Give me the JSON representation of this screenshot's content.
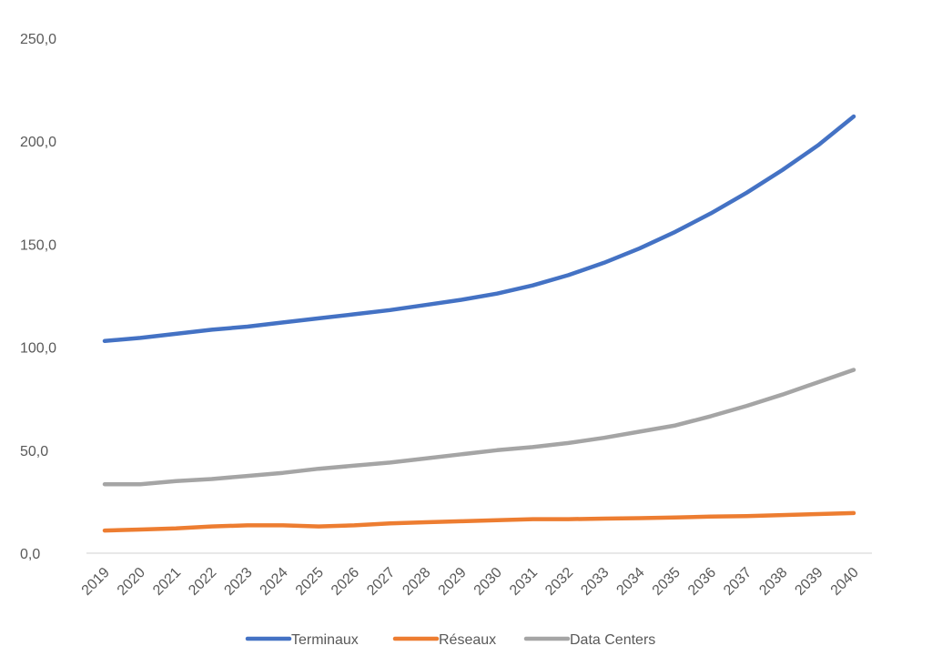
{
  "chart_data": {
    "type": "line",
    "title": "",
    "xlabel": "",
    "ylabel": "",
    "ylim": [
      0,
      250
    ],
    "y_ticks": [
      "0,0",
      "50,0",
      "100,0",
      "150,0",
      "200,0",
      "250,0"
    ],
    "y_tick_values": [
      0,
      50,
      100,
      150,
      200,
      250
    ],
    "grid": false,
    "legend_position": "bottom",
    "categories": [
      "2019",
      "2020",
      "2021",
      "2022",
      "2023",
      "2024",
      "2025",
      "2026",
      "2027",
      "2028",
      "2029",
      "2030",
      "2031",
      "2032",
      "2033",
      "2034",
      "2035",
      "2036",
      "2037",
      "2038",
      "2039",
      "2040"
    ],
    "series": [
      {
        "name": "Terminaux",
        "color": "#4472c4",
        "values": [
          103,
          104.5,
          106.5,
          108.5,
          110,
          112,
          114,
          116,
          118,
          120.5,
          123,
          126,
          130,
          135,
          141,
          148,
          156,
          165,
          175,
          186,
          198,
          212
        ]
      },
      {
        "name": "Réseaux",
        "color": "#ed7d31",
        "values": [
          11,
          11.5,
          12,
          13,
          13.5,
          13.5,
          13,
          13.5,
          14.5,
          15,
          15.5,
          16,
          16.5,
          16.5,
          16.8,
          17,
          17.3,
          17.8,
          18,
          18.5,
          19,
          19.5
        ]
      },
      {
        "name": "Data Centers",
        "color": "#a5a5a5",
        "values": [
          33.5,
          33.5,
          35,
          36,
          37.5,
          39,
          41,
          42.5,
          44,
          46,
          48,
          50,
          51.5,
          53.5,
          56,
          59,
          62,
          66.5,
          71.5,
          77,
          83,
          89
        ]
      }
    ]
  }
}
